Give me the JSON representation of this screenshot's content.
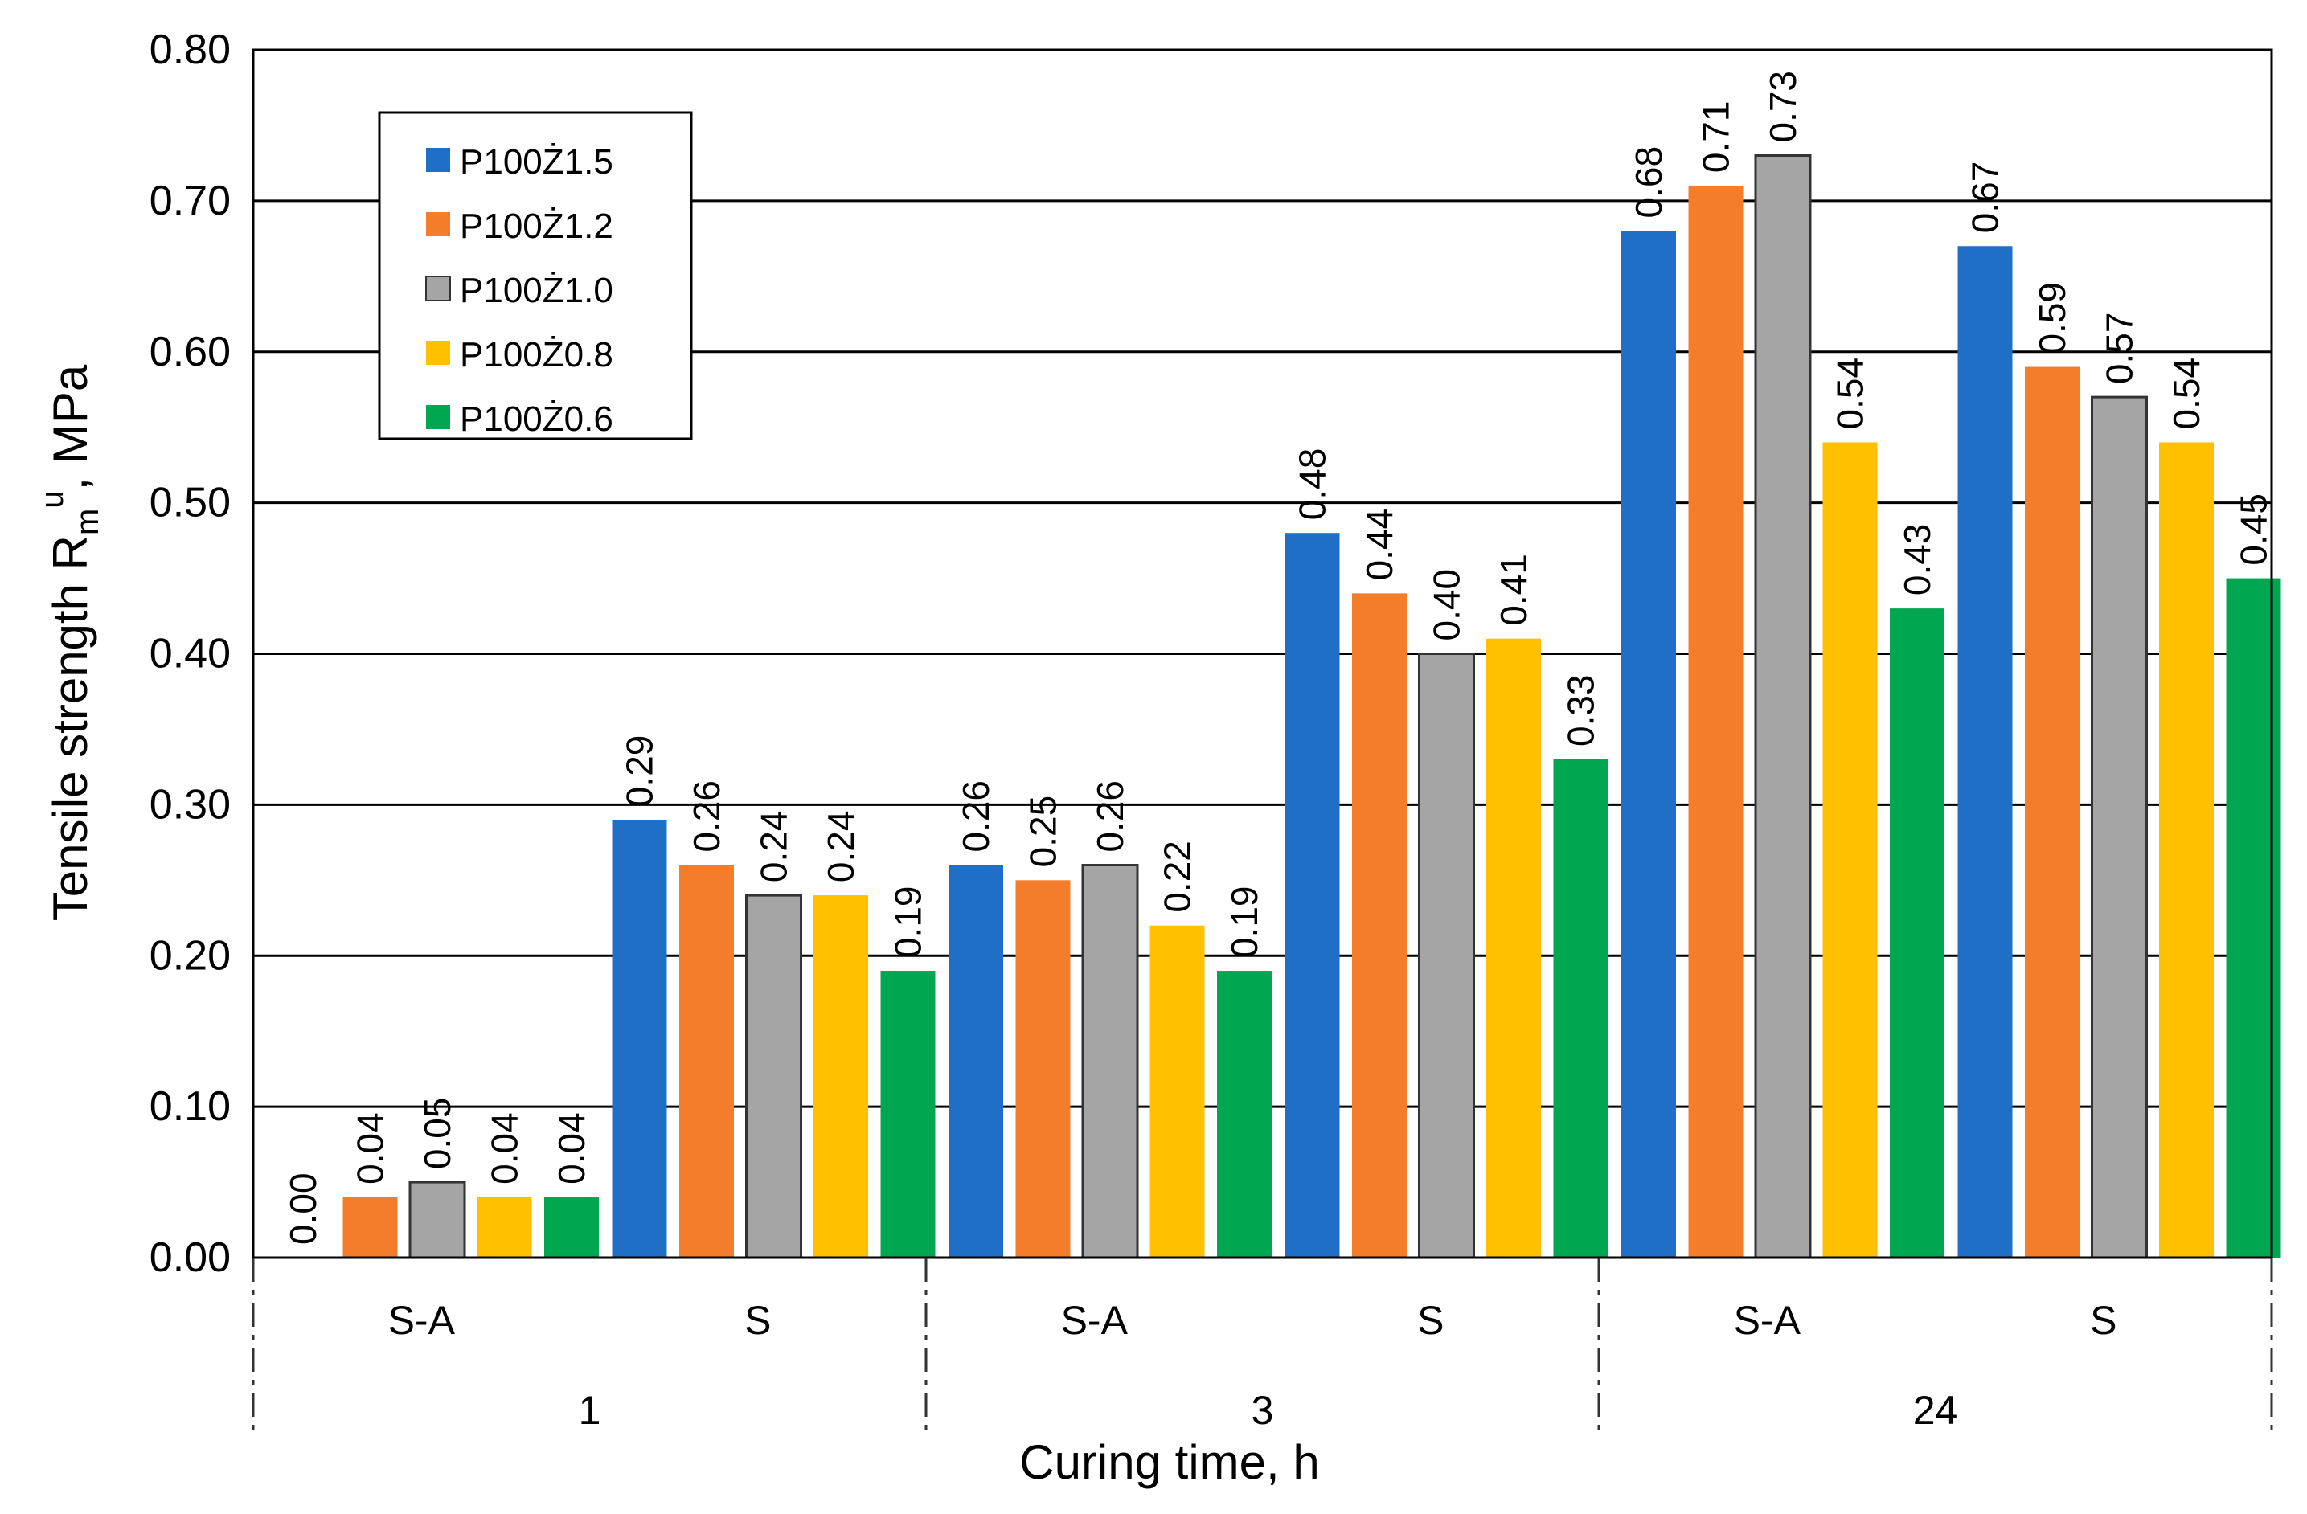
{
  "chart_data": {
    "type": "bar",
    "ylabel": "Tensile strength Rmu, MPa",
    "ylabel_parts": {
      "main": "Tensile strength R",
      "sub": "m",
      "sup": "u",
      "tail": ", MPa"
    },
    "xlabel": "Curing time, h",
    "ylim": [
      0,
      0.8
    ],
    "yticks": [
      "0.00",
      "0.10",
      "0.20",
      "0.30",
      "0.40",
      "0.50",
      "0.60",
      "0.70",
      "0.80"
    ],
    "grid": true,
    "legend_position": "top-left",
    "groups": [
      "1",
      "3",
      "24"
    ],
    "categories": [
      "S-A",
      "S",
      "S-A",
      "S",
      "S-A",
      "S"
    ],
    "series": [
      {
        "name": "P100Ż1.5",
        "color": "#1f6fc6",
        "values": [
          0.0,
          0.29,
          0.26,
          0.48,
          0.68,
          0.67
        ],
        "labels": [
          "0.00",
          "0.29",
          "0.26",
          "0.48",
          "0.68",
          "0.67"
        ]
      },
      {
        "name": "P100Ż1.2",
        "color": "#f47d2c",
        "values": [
          0.04,
          0.26,
          0.25,
          0.44,
          0.71,
          0.59
        ],
        "labels": [
          "0.04",
          "0.26",
          "0.25",
          "0.44",
          "0.71",
          "0.59"
        ]
      },
      {
        "name": "P100Ż1.0",
        "color": "#a5a5a5",
        "values": [
          0.05,
          0.24,
          0.26,
          0.4,
          0.73,
          0.57
        ],
        "labels": [
          "0.05",
          "0.24",
          "0.26",
          "0.40",
          "0.73",
          "0.57"
        ]
      },
      {
        "name": "P100Ż0.8",
        "color": "#ffc000",
        "values": [
          0.04,
          0.24,
          0.22,
          0.41,
          0.54,
          0.54
        ],
        "labels": [
          "0.04",
          "0.24",
          "0.22",
          "0.41",
          "0.54",
          "0.54"
        ]
      },
      {
        "name": "P100Ż0.6",
        "color": "#00a650",
        "values": [
          0.04,
          0.19,
          0.19,
          0.33,
          0.43,
          0.45
        ],
        "labels": [
          "0.04",
          "0.19",
          "0.19",
          "0.33",
          "0.43",
          "0.45"
        ]
      }
    ]
  }
}
